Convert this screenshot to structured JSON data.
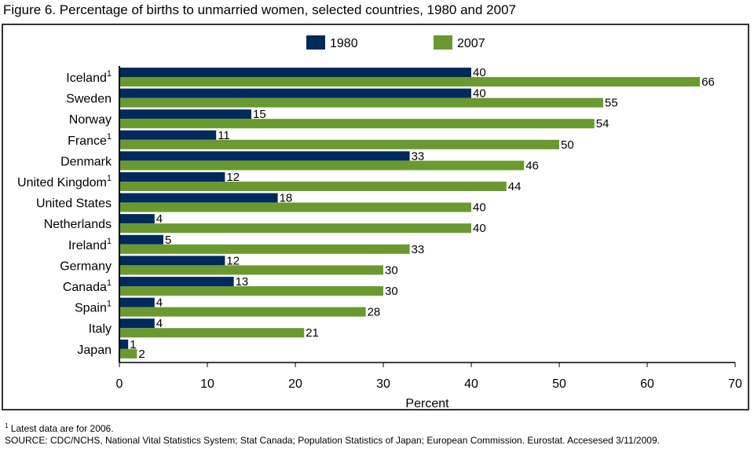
{
  "title": "Figure 6.  Percentage of births to unmarried women, selected countries, 1980 and 2007",
  "footnote": {
    "marker": "1",
    "text": " Latest data are for 2006."
  },
  "source": "SOURCE: CDC/NCHS, National Vital Statistics System; Stat Canada; Population Statistics of Japan; European Commission.  Eurostat.  Accesesed 3/11/2009.",
  "chart_data": {
    "type": "bar",
    "orientation": "horizontal",
    "title": "Figure 6.  Percentage of births to unmarried women, selected countries, 1980 and 2007",
    "xlabel": "Percent",
    "xlim": [
      0,
      70
    ],
    "xticks": [
      0,
      10,
      20,
      30,
      40,
      50,
      60,
      70
    ],
    "grid": false,
    "legend": "top",
    "categories": [
      "Iceland",
      "Sweden",
      "Norway",
      "France",
      "Denmark",
      "United Kingdom",
      "United States",
      "Netherlands",
      "Ireland",
      "Germany",
      "Canada",
      "Spain",
      "Italy",
      "Japan"
    ],
    "category_footnotes": [
      "1",
      "",
      "",
      "1",
      "",
      "1",
      "",
      "",
      "1",
      "",
      "1",
      "1",
      "",
      ""
    ],
    "series": [
      {
        "name": "1980",
        "color": "#002a5c",
        "values": [
          40,
          40,
          15,
          11,
          33,
          12,
          18,
          4,
          5,
          12,
          13,
          4,
          4,
          1
        ]
      },
      {
        "name": "2007",
        "color": "#6a9a2f",
        "values": [
          66,
          55,
          54,
          50,
          46,
          44,
          40,
          40,
          33,
          30,
          30,
          28,
          21,
          2
        ]
      }
    ]
  }
}
